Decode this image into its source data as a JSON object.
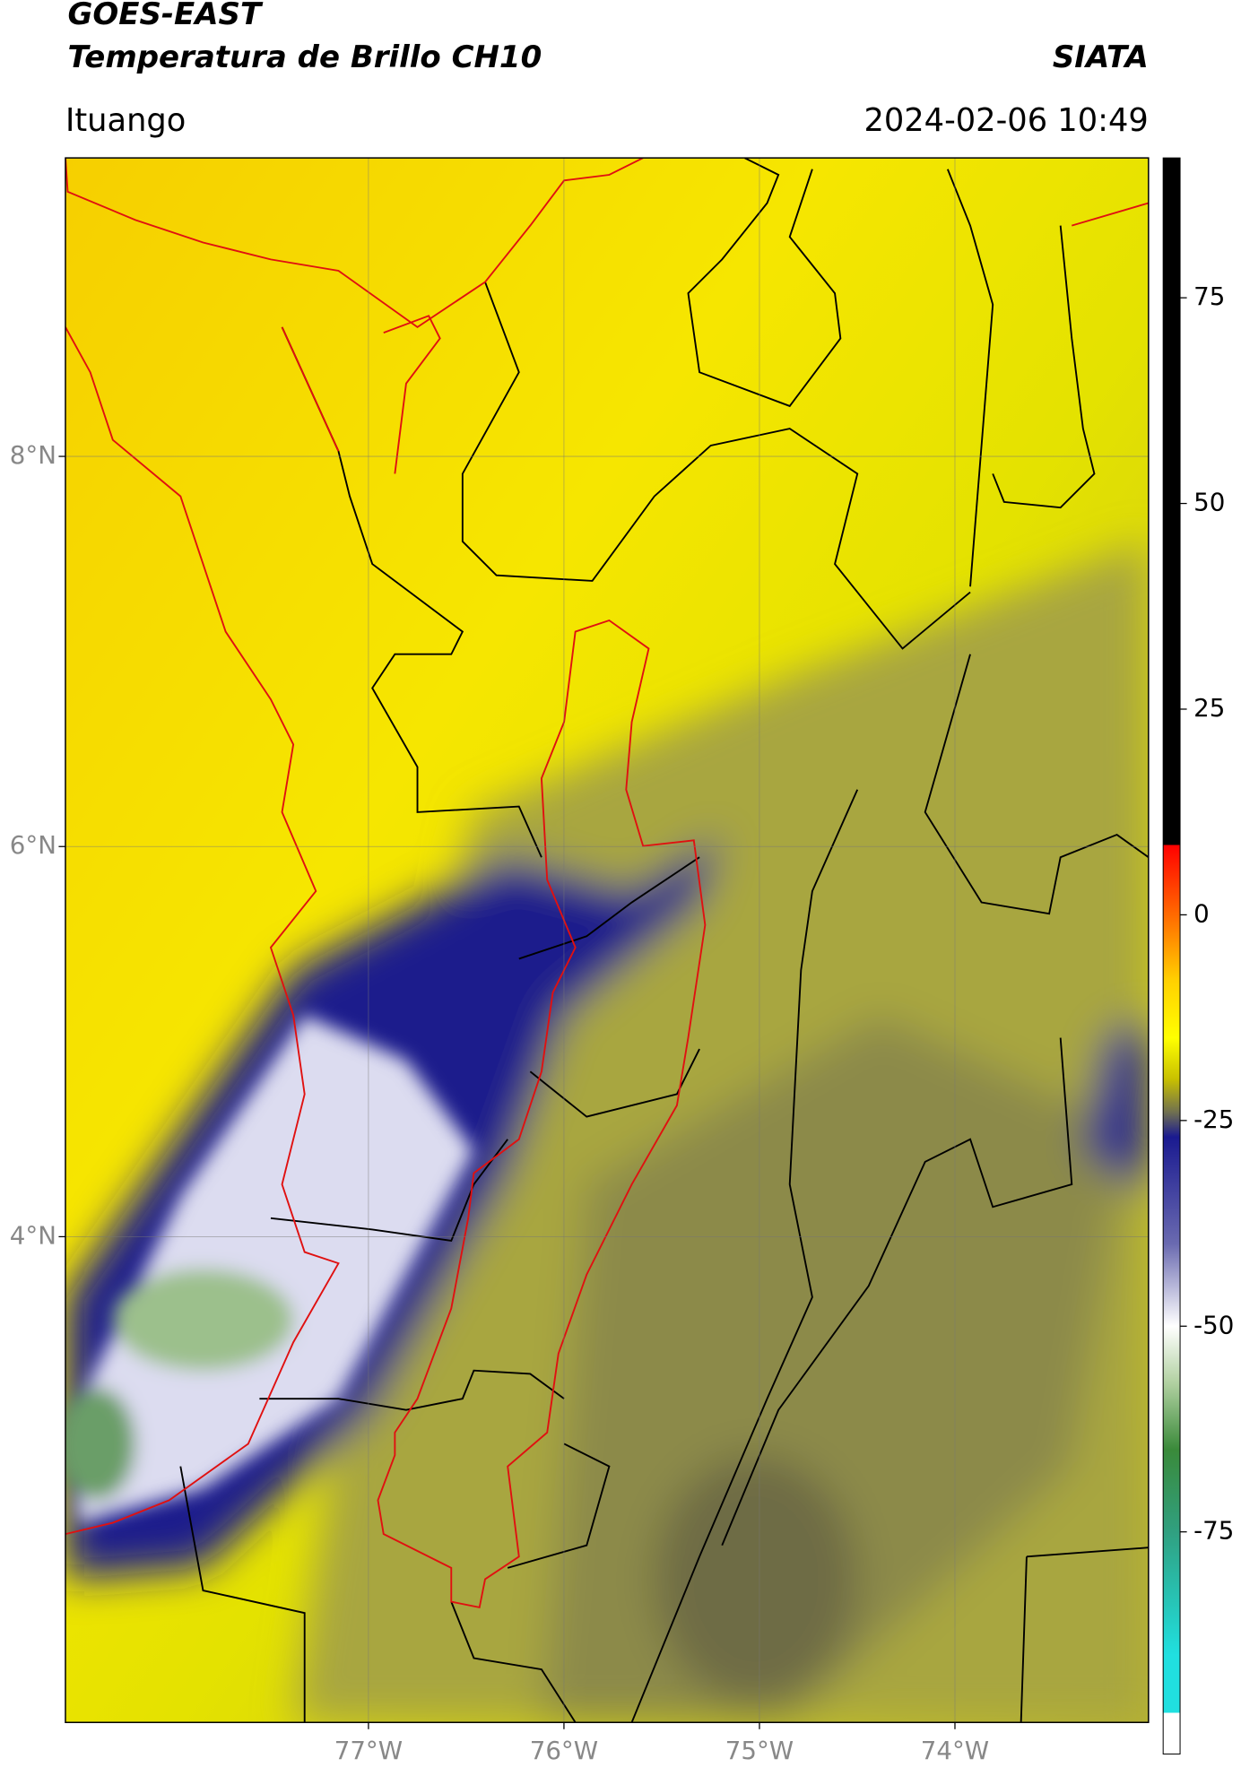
{
  "header": {
    "title": "GOES-EAST",
    "subtitle": "Temperatura de Brillo CH10",
    "source": "SIATA",
    "location": "Ituango",
    "timestamp": "2024-02-06 10:49"
  },
  "map": {
    "xlim": [
      -78.55,
      -73.01
    ],
    "ylim": [
      1.51,
      9.53
    ],
    "xticks": [
      {
        "value": -77,
        "label": "77°W"
      },
      {
        "value": -76,
        "label": "76°W"
      },
      {
        "value": -75,
        "label": "75°W"
      },
      {
        "value": -74,
        "label": "74°W"
      }
    ],
    "yticks": [
      {
        "value": 8,
        "label": "8°N"
      },
      {
        "value": 6,
        "label": "6°N"
      },
      {
        "value": 4,
        "label": "4°N"
      }
    ],
    "grid": true
  },
  "colorbar": {
    "lim": [
      -102,
      92
    ],
    "ticks": [
      75,
      50,
      25,
      0,
      -25,
      -50,
      -75
    ],
    "stops": [
      {
        "value": 92,
        "color": "#000000"
      },
      {
        "value": 8.5,
        "color": "#000000"
      },
      {
        "value": 8.5,
        "color": "#ff0000"
      },
      {
        "value": 0,
        "color": "#ff6a00"
      },
      {
        "value": -8,
        "color": "#ffd000"
      },
      {
        "value": -15,
        "color": "#ffff00"
      },
      {
        "value": -20,
        "color": "#c8c000"
      },
      {
        "value": -24,
        "color": "#707050"
      },
      {
        "value": -27,
        "color": "#1a1a90"
      },
      {
        "value": -40,
        "color": "#6a6ab0"
      },
      {
        "value": -50,
        "color": "#ffffff"
      },
      {
        "value": -57,
        "color": "#b0d0a0"
      },
      {
        "value": -65,
        "color": "#3a8a3a"
      },
      {
        "value": -75,
        "color": "#30a080"
      },
      {
        "value": -90,
        "color": "#20e0e0"
      },
      {
        "value": -97,
        "color": "#20e0e0"
      },
      {
        "value": -97,
        "color": "#ffffff"
      },
      {
        "value": -102,
        "color": "#ffffff"
      }
    ]
  }
}
